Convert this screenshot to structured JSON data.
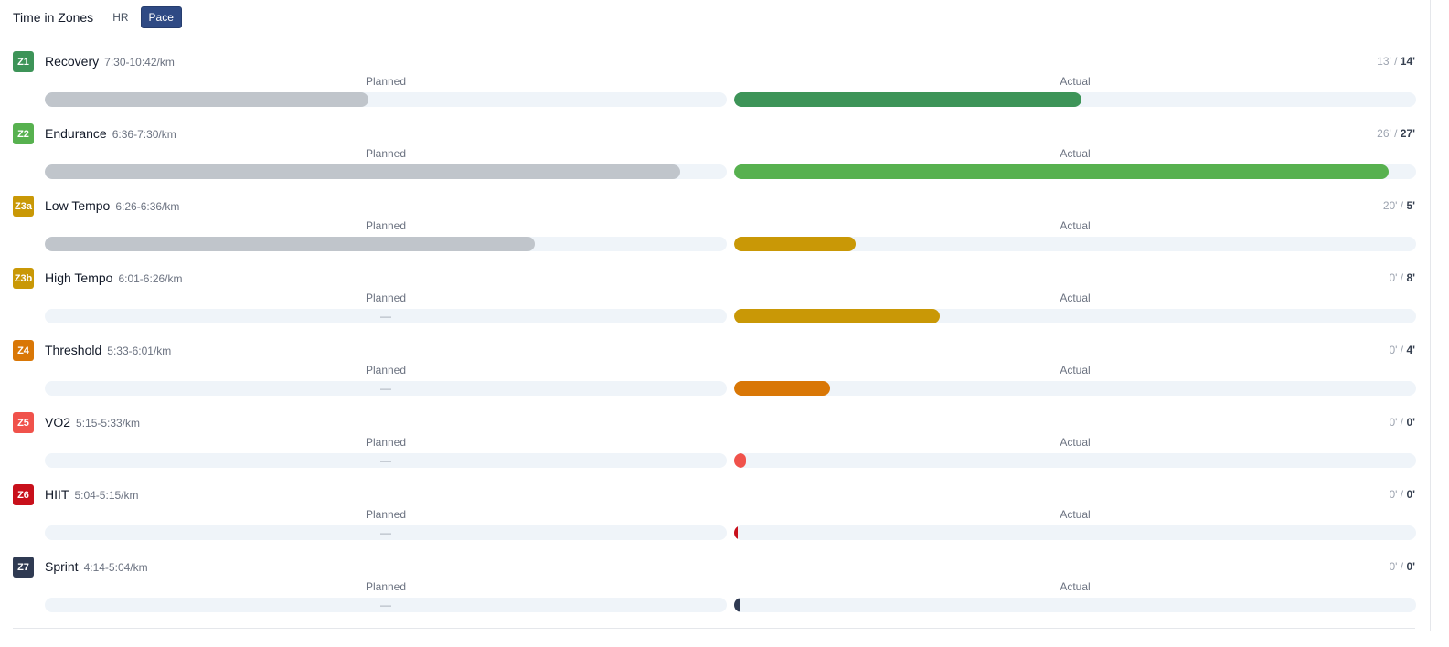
{
  "header": {
    "title": "Time in Zones",
    "toggle": {
      "hr_label": "HR",
      "pace_label": "Pace",
      "selected": "Pace"
    }
  },
  "labels": {
    "planned": "Planned",
    "actual": "Actual",
    "empty": "—",
    "separator": " / "
  },
  "zones": [
    {
      "code": "Z1",
      "name": "Recovery",
      "range": "7:30-10:42/km",
      "planned_label": "13'",
      "actual_label": "14'",
      "planned_fraction": 0.474,
      "actual_fraction": 0.509,
      "color": "#3d9458"
    },
    {
      "code": "Z2",
      "name": "Endurance",
      "range": "6:36-7:30/km",
      "planned_label": "26'",
      "actual_label": "27'",
      "planned_fraction": 0.931,
      "actual_fraction": 0.96,
      "color": "#57b14f"
    },
    {
      "code": "Z3a",
      "name": "Low Tempo",
      "range": "6:26-6:36/km",
      "planned_label": "20'",
      "actual_label": "5'",
      "planned_fraction": 0.719,
      "actual_fraction": 0.178,
      "color": "#c99806"
    },
    {
      "code": "Z3b",
      "name": "High Tempo",
      "range": "6:01-6:26/km",
      "planned_label": "0'",
      "actual_label": "8'",
      "planned_fraction": 0,
      "actual_fraction": 0.302,
      "color": "#c99806"
    },
    {
      "code": "Z4",
      "name": "Threshold",
      "range": "5:33-6:01/km",
      "planned_label": "0'",
      "actual_label": "4'",
      "planned_fraction": 0,
      "actual_fraction": 0.141,
      "color": "#d97706"
    },
    {
      "code": "Z5",
      "name": "VO2",
      "range": "5:15-5:33/km",
      "planned_label": "0'",
      "actual_label": "0'",
      "planned_fraction": 0,
      "actual_fraction": 0.018,
      "color": "#f0524b"
    },
    {
      "code": "Z6",
      "name": "HIIT",
      "range": "5:04-5:15/km",
      "planned_label": "0'",
      "actual_label": "0'",
      "planned_fraction": 0,
      "actual_fraction": 0.006,
      "color": "#c8101b"
    },
    {
      "code": "Z7",
      "name": "Sprint",
      "range": "4:14-5:04/km",
      "planned_label": "0'",
      "actual_label": "0'",
      "planned_fraction": 0,
      "actual_fraction": 0.01,
      "color": "#2f3a52"
    }
  ]
}
